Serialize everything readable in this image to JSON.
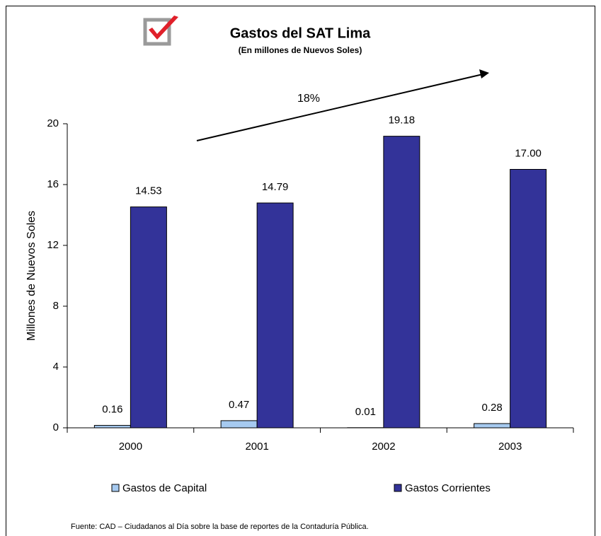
{
  "chart_data": {
    "type": "bar",
    "title": "Gastos del SAT Lima",
    "subtitle": "(En millones de Nuevos Soles)",
    "y_label": "Millones de Nuevos Soles",
    "annotation": "18%",
    "source": "Fuente: CAD – Ciudadanos al Día sobre la base de reportes de la Contaduría Pública.",
    "categories": [
      "2000",
      "2001",
      "2002",
      "2003"
    ],
    "series": [
      {
        "name": "Gastos de Capital",
        "color": "#a6caf0",
        "values": [
          0.16,
          0.47,
          0.01,
          0.28
        ],
        "value_labels": [
          "0.16",
          "0.47",
          "0.01",
          "0.28"
        ]
      },
      {
        "name": "Gastos Corrientes",
        "color": "#333399",
        "values": [
          14.53,
          14.79,
          19.18,
          17
        ],
        "value_labels": [
          "14.53",
          "14.79",
          "19.18",
          "17.00"
        ]
      }
    ],
    "ylim": [
      0,
      20
    ],
    "yticks": [
      0,
      4,
      8,
      12,
      16,
      20
    ],
    "grid": false,
    "legend": "bottom"
  }
}
